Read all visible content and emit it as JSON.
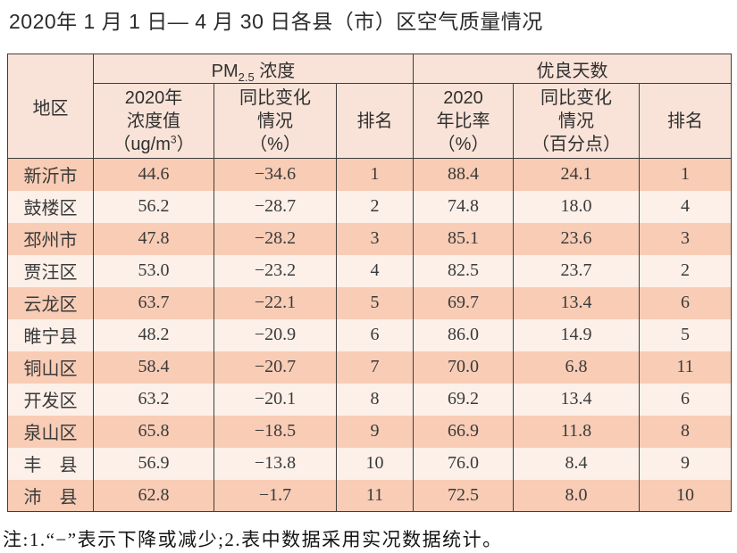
{
  "page": {
    "title": "2020年 1 月 1 日— 4 月 30 日各县（市）区空气质量情况",
    "footnote": "注:1.“−”表示下降或减少;2.表中数据采用实况数据统计。"
  },
  "colors": {
    "row_odd_bg": "#f8ccb5",
    "row_even_bg": "#fcf0e9",
    "header_bg": "#f9e3d8",
    "border": "#3f3f3f",
    "title_text": "#2b2b2b",
    "cell_text": "#3a3a3a"
  },
  "table": {
    "header": {
      "region": "地区",
      "pm_group": {
        "prefix": "PM",
        "sub": "2.5",
        "suffix": " 浓度"
      },
      "good_days_group": "优良天数",
      "col_conc": {
        "line1": "2020年",
        "line2": "浓度值",
        "line3_prefix": "（ug/m",
        "line3_sup": "3",
        "line3_suffix": "）"
      },
      "col_change_pm": {
        "line1": "同比变化",
        "line2": "情况",
        "line3": "（%）"
      },
      "col_rank_pm": "排名",
      "col_ratio": {
        "line1": "2020",
        "line2": "年比率",
        "line3": "（%）"
      },
      "col_change_days": {
        "line1": "同比变化",
        "line2": "情况",
        "line3": "（百分点）"
      },
      "col_rank_days": "排名"
    },
    "rows": [
      [
        "新沂市",
        "44.6",
        "−34.6",
        "1",
        "88.4",
        "24.1",
        "1"
      ],
      [
        "鼓楼区",
        "56.2",
        "−28.7",
        "2",
        "74.8",
        "18.0",
        "4"
      ],
      [
        "邳州市",
        "47.8",
        "−28.2",
        "3",
        "85.1",
        "23.6",
        "3"
      ],
      [
        "贾汪区",
        "53.0",
        "−23.2",
        "4",
        "82.5",
        "23.7",
        "2"
      ],
      [
        "云龙区",
        "63.7",
        "−22.1",
        "5",
        "69.7",
        "13.4",
        "6"
      ],
      [
        "睢宁县",
        "48.2",
        "−20.9",
        "6",
        "86.0",
        "14.9",
        "5"
      ],
      [
        "铜山区",
        "58.4",
        "−20.7",
        "7",
        "70.0",
        "6.8",
        "11"
      ],
      [
        "开发区",
        "63.2",
        "−20.1",
        "8",
        "69.2",
        "13.4",
        "6"
      ],
      [
        "泉山区",
        "65.8",
        "−18.5",
        "9",
        "66.9",
        "11.8",
        "8"
      ],
      [
        "丰　县",
        "56.9",
        "−13.8",
        "10",
        "76.0",
        "8.4",
        "9"
      ],
      [
        "沛　县",
        "62.8",
        "−1.7",
        "11",
        "72.5",
        "8.0",
        "10"
      ]
    ]
  }
}
